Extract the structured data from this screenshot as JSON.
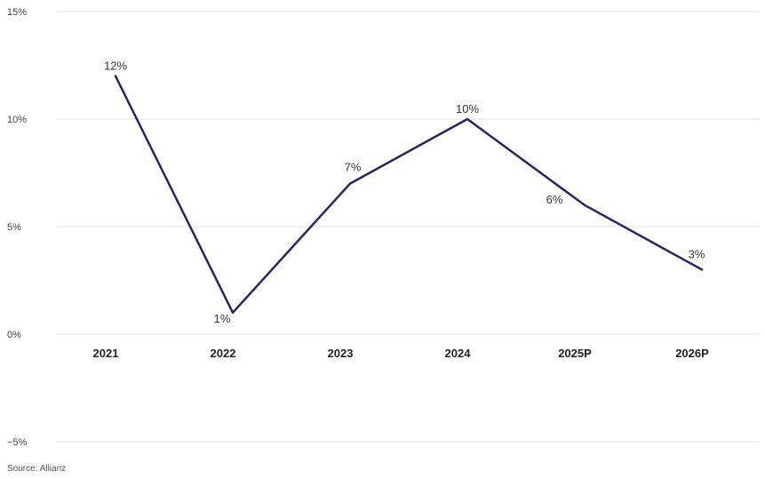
{
  "chart_data": {
    "type": "line",
    "title": "",
    "xlabel": "",
    "ylabel": "",
    "categories": [
      "2021",
      "2022",
      "2023",
      "2024",
      "2025P",
      "2026P"
    ],
    "series": [
      {
        "values": [
          12,
          1,
          7,
          10,
          6,
          3
        ],
        "labels": [
          "12%",
          "1%",
          "7%",
          "10%",
          "6%",
          "3%"
        ],
        "color": "#2b2460"
      }
    ],
    "ylim": [
      -5,
      15
    ],
    "yticks": [
      15,
      10,
      5,
      0,
      -5
    ],
    "ytick_labels": [
      "15%",
      "10%",
      "5%",
      "0%",
      "−5%"
    ],
    "grid": true,
    "legend": "none"
  },
  "source": "Source: Allianz"
}
